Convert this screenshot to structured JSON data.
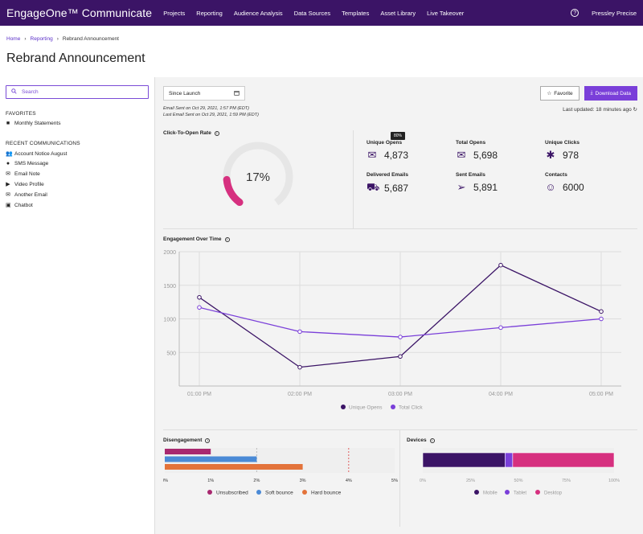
{
  "nav": {
    "brand": "EngageOne™ Communicate",
    "links": [
      "Projects",
      "Reporting",
      "Audience Analysis",
      "Data Sources",
      "Templates",
      "Asset Library",
      "Live Takeover"
    ],
    "help": "?",
    "user": "Pressley Precise"
  },
  "breadcrumb": {
    "home": "Home",
    "reporting": "Reporting",
    "current": "Rebrand Announcement"
  },
  "page": {
    "title": "Rebrand Announcement"
  },
  "sidebar": {
    "search_placeholder": "Search",
    "favorites_title": "FAVORITES",
    "favorites": [
      {
        "label": "Monthly Statements",
        "icon": "folder-icon"
      }
    ],
    "recent_title": "RECENT COMMUNICATIONS",
    "recent": [
      {
        "label": "Account Notice August",
        "icon": "people-icon"
      },
      {
        "label": "SMS Message",
        "icon": "chat-icon"
      },
      {
        "label": "Email Note",
        "icon": "mail-icon"
      },
      {
        "label": "Video Profile",
        "icon": "video-icon"
      },
      {
        "label": "Another Email",
        "icon": "mail-icon"
      },
      {
        "label": "Chatbot",
        "icon": "bot-icon"
      }
    ]
  },
  "toolbar": {
    "date_range": "Since Launch",
    "favorite_label": "Favorite",
    "download_label": "Download Data"
  },
  "meta": {
    "sent_first": "Email Sent on Oct 29, 2021, 1:57 PM (EDT)",
    "sent_last": "Last Email Sent on Oct 29, 2021, 1:59 PM (EDT)",
    "updated": "Last updated: 18 minutes ago"
  },
  "ctor": {
    "title": "Click-To-Open Rate",
    "value_label": "17%",
    "value": 17
  },
  "kpis": {
    "tooltip": "80%",
    "items": [
      {
        "label": "Unique Opens",
        "value": "4,873",
        "icon": "mail-open-icon"
      },
      {
        "label": "Total Opens",
        "value": "5,698",
        "icon": "mail-icon"
      },
      {
        "label": "Unique Clicks",
        "value": "978",
        "icon": "click-icon"
      },
      {
        "label": "Delivered Emails",
        "value": "5,687",
        "icon": "truck-icon"
      },
      {
        "label": "Sent Emails",
        "value": "5,891",
        "icon": "paper-plane-icon"
      },
      {
        "label": "Contacts",
        "value": "6000",
        "icon": "contacts-icon"
      }
    ]
  },
  "engagement": {
    "title": "Engagement Over Time"
  },
  "disengagement": {
    "title": "Disengagement"
  },
  "devices": {
    "title": "Devices"
  },
  "chart_data": [
    {
      "type": "line",
      "x": [
        "01:00 PM",
        "02:00 PM",
        "03:00 PM",
        "04:00 PM",
        "05:00 PM"
      ],
      "series": [
        {
          "name": "Unique Opens",
          "values": [
            1320,
            280,
            440,
            1800,
            1110
          ],
          "color": "#3b1466"
        },
        {
          "name": "Total Click",
          "values": [
            1170,
            810,
            730,
            870,
            1000
          ],
          "color": "#7a3fd9"
        }
      ],
      "ylim": [
        0,
        2000
      ],
      "yticks": [
        500,
        1000,
        1500,
        2000
      ],
      "legend": "bottom",
      "grid": true
    },
    {
      "type": "bar",
      "orientation": "horizontal",
      "categories": [
        "Unsubscribed",
        "Soft bounce",
        "Hard bounce"
      ],
      "values": [
        1,
        2,
        3
      ],
      "colors": [
        "#a8286f",
        "#4a8ad6",
        "#e3733a"
      ],
      "xlim": [
        0,
        5
      ],
      "xticks": [
        "0%",
        "1%",
        "2%",
        "3%",
        "4%",
        "5%"
      ],
      "legend": "bottom"
    },
    {
      "type": "bar",
      "orientation": "horizontal-stacked",
      "categories": [
        "Mobile",
        "Tablet",
        "Desktop"
      ],
      "values": [
        43,
        4,
        53
      ],
      "colors": [
        "#3b1466",
        "#7a3fd9",
        "#d6307f"
      ],
      "xlim": [
        0,
        100
      ],
      "xticks": [
        "0%",
        "25%",
        "50%",
        "75%",
        "100%"
      ],
      "legend": "bottom"
    }
  ]
}
